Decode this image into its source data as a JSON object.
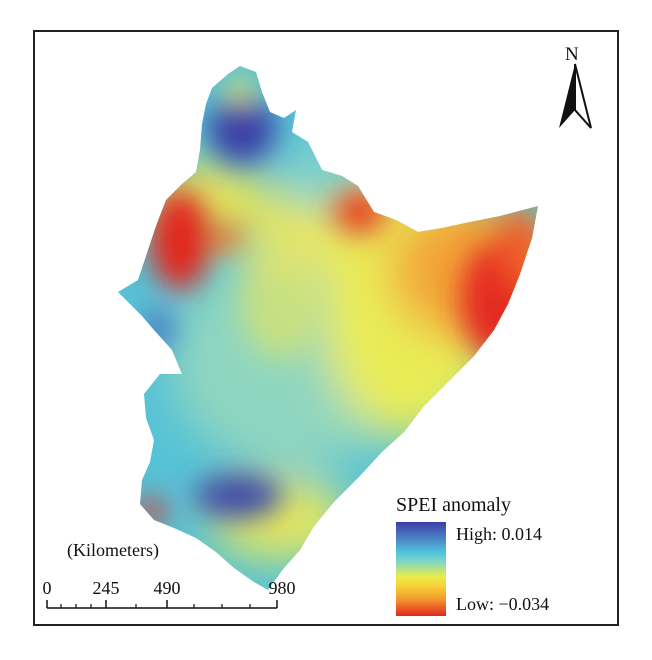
{
  "map": {
    "north_label": "N",
    "colors": {
      "high": "#3b3fa6",
      "mid_high": "#4fc3dc",
      "mid": "#e8ec4a",
      "mid_low": "#f39a2e",
      "low": "#e2261f"
    }
  },
  "legend": {
    "title": "SPEI anomaly",
    "high_label": "High: 0.014",
    "low_label": "Low: −0.034"
  },
  "scale_bar": {
    "unit_label": "(Kilometers)",
    "ticks": [
      "0",
      "245",
      "490",
      "980"
    ]
  }
}
